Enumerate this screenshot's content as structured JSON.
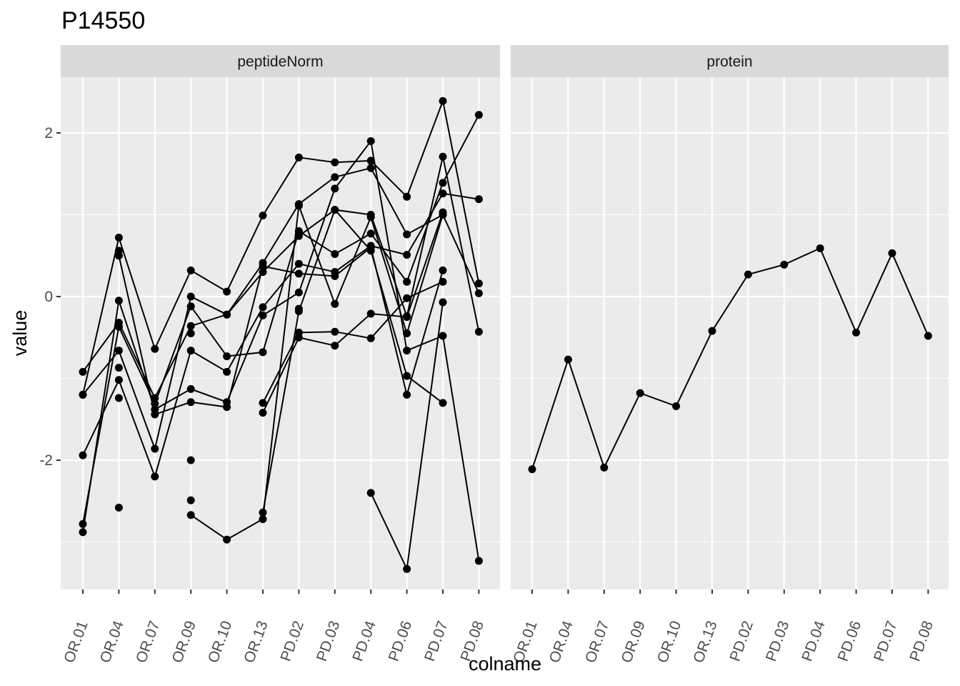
{
  "chart_data": {
    "type": "line",
    "title": "P14550",
    "xlabel": "colname",
    "ylabel": "value",
    "ylim": [
      -3.6,
      2.7
    ],
    "y_ticks": [
      -2,
      0,
      2
    ],
    "categories": [
      "OR.01",
      "OR.04",
      "OR.07",
      "OR.09",
      "OR.10",
      "OR.13",
      "PD.02",
      "PD.03",
      "PD.04",
      "PD.06",
      "PD.07",
      "PD.08"
    ],
    "grid": true,
    "legend": "none",
    "panels": [
      {
        "name": "peptideNorm",
        "series": [
          {
            "values": [
              -1.2,
              0.72,
              -0.64,
              0.32,
              0.06,
              0.99,
              1.7,
              1.64,
              1.66,
              1.22,
              2.39,
              0.16
            ]
          },
          {
            "values": [
              -0.92,
              -0.32,
              -1.24,
              -0.36,
              -0.22,
              0.41,
              1.13,
              1.46,
              1.57,
              0.76,
              1.0,
              0.04
            ]
          },
          {
            "values": [
              -1.2,
              -0.66,
              -1.86,
              0.0,
              -0.22,
              0.3,
              0.74,
              1.06,
              1.0,
              -0.24,
              1.71,
              -0.43
            ]
          },
          {
            "values": [
              -1.94,
              -1.02,
              -2.2,
              -0.66,
              -0.92,
              -0.13,
              0.4,
              0.3,
              0.62,
              0.51,
              1.26,
              1.19
            ]
          },
          {
            "values": [
              -2.78,
              -0.37,
              -1.31,
              -0.12,
              -0.73,
              -0.68,
              0.8,
              0.52,
              0.77,
              0.18,
              1.39,
              2.22
            ]
          },
          {
            "values": [
              -2.88,
              -0.05,
              -1.38,
              -1.13,
              -1.29,
              -0.23,
              0.05,
              1.32,
              1.9,
              -0.66,
              -0.48,
              -3.23
            ]
          },
          {
            "values": [
              null,
              0.5,
              -1.44,
              -1.29,
              -1.35,
              0.37,
              0.28,
              0.25,
              0.6,
              -1.2,
              0.32,
              null
            ]
          },
          {
            "values": [
              null,
              0.56,
              null,
              -0.45,
              null,
              -1.3,
              -0.44,
              -0.43,
              -0.51,
              -0.02,
              0.18,
              null
            ]
          },
          {
            "values": [
              null,
              -0.87,
              null,
              -2.0,
              null,
              -1.42,
              -0.5,
              -0.6,
              -0.21,
              -0.25,
              1.03,
              null
            ]
          },
          {
            "values": [
              null,
              -2.58,
              null,
              -2.49,
              null,
              -2.64,
              -0.18,
              1.06,
              0.56,
              -0.97,
              -1.3,
              null
            ]
          },
          {
            "values": [
              null,
              -1.24,
              null,
              -2.67,
              -2.97,
              -2.72,
              1.11,
              -0.09,
              0.97,
              -0.45,
              1.0,
              null
            ]
          },
          {
            "values": [
              null,
              null,
              null,
              null,
              null,
              null,
              -0.15,
              null,
              -2.4,
              -3.33,
              -0.07,
              null
            ]
          }
        ]
      },
      {
        "name": "protein",
        "series": [
          {
            "values": [
              -2.11,
              -0.77,
              -2.09,
              -1.18,
              -1.34,
              -0.42,
              0.27,
              0.39,
              0.59,
              -0.44,
              0.53,
              -0.48
            ]
          }
        ]
      }
    ]
  }
}
